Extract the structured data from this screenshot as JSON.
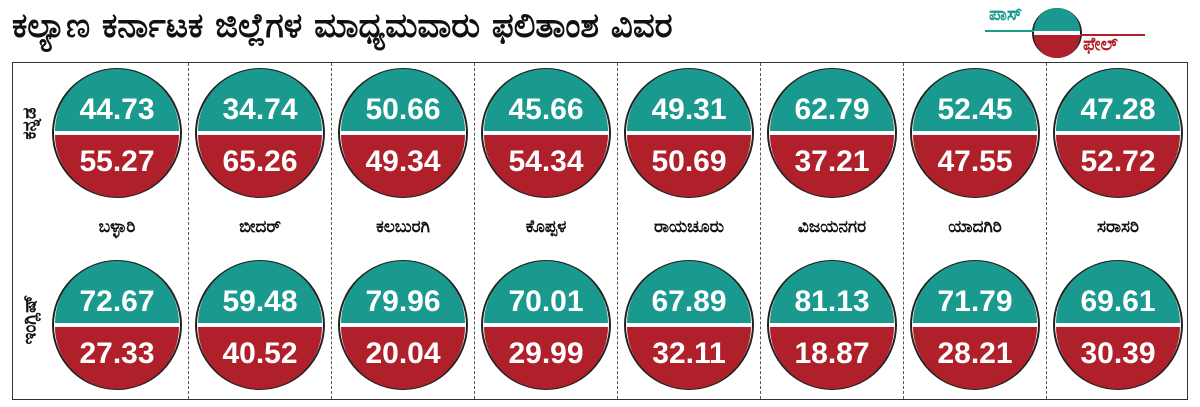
{
  "title": "ಕಲ್ಯಾಣ ಕರ್ನಾಟಕ ಜಿಲ್ಲೆಗಳ ಮಾಧ್ಯಮವಾರು ಫಲಿತಾಂಶ ವಿವರ",
  "legend": {
    "pass": "ಪಾಸ್",
    "fail": "ಫೇಲ್"
  },
  "colors": {
    "pass": "#1a9a8f",
    "fail": "#b0202a",
    "ring": "#222222",
    "text": "#111111"
  },
  "row_labels": [
    "ಕನ್ನಡ",
    "ಇಂಗ್ಲಿಷ್"
  ],
  "chart_data": {
    "type": "pie",
    "title": "ಕಲ್ಯಾಣ ಕರ್ನಾಟಕ ಜಿಲ್ಲೆಗಳ ಮಾಧ್ಯಮವಾರು ಫಲಿತಾಂಶ ವಿವರ",
    "legend": [
      "ಪಾಸ್",
      "ಫೇಲ್"
    ],
    "categories": [
      "ಬಳ್ಳಾರಿ",
      "ಬೀದರ್",
      "ಕಲಬುರಗಿ",
      "ಕೊಪ್ಪಳ",
      "ರಾಯಚೂರು",
      "ವಿಜಯನಗರ",
      "ಯಾದಗಿರಿ",
      "ಸರಾಸರಿ"
    ],
    "rows": [
      {
        "name": "ಕನ್ನಡ",
        "pass": [
          "44.73",
          "34.74",
          "50.66",
          "45.66",
          "49.31",
          "62.79",
          "52.45",
          "47.28"
        ],
        "fail": [
          "55.27",
          "65.26",
          "49.34",
          "54.34",
          "50.69",
          "37.21",
          "47.55",
          "52.72"
        ]
      },
      {
        "name": "ಇಂಗ್ಲಿಷ್",
        "pass": [
          "72.67",
          "59.48",
          "79.96",
          "70.01",
          "67.89",
          "81.13",
          "71.79",
          "69.61"
        ],
        "fail": [
          "27.33",
          "40.52",
          "20.04",
          "29.99",
          "32.11",
          "18.87",
          "28.21",
          "30.39"
        ]
      }
    ]
  }
}
